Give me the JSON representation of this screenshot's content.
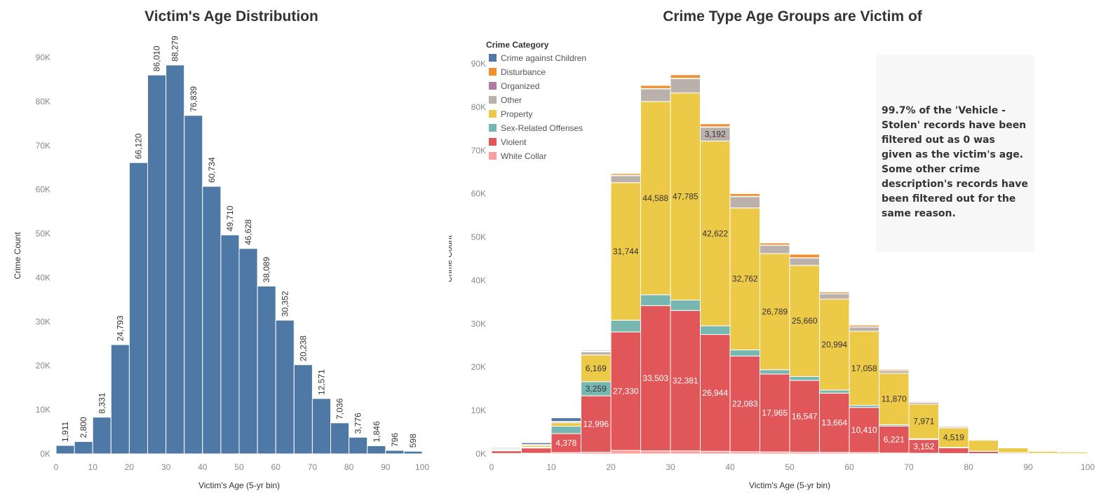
{
  "chart_data": [
    {
      "type": "bar",
      "title": "Victim's Age Distribution",
      "xlabel": "Victim's Age (5-yr bin)",
      "ylabel": "Crime Count",
      "ylim": [
        0,
        90000
      ],
      "y_ticks": [
        "0K",
        "10K",
        "20K",
        "30K",
        "40K",
        "50K",
        "60K",
        "70K",
        "80K",
        "90K"
      ],
      "x_ticks": [
        "0",
        "10",
        "20",
        "30",
        "40",
        "50",
        "60",
        "70",
        "80",
        "90",
        "100"
      ],
      "bin_starts": [
        0,
        5,
        10,
        15,
        20,
        25,
        30,
        35,
        40,
        45,
        50,
        55,
        60,
        65,
        70,
        75,
        80,
        85,
        90,
        95
      ],
      "values": [
        1911,
        2800,
        8331,
        24793,
        66120,
        86010,
        88279,
        76839,
        60734,
        49710,
        46628,
        38089,
        30352,
        20238,
        12571,
        7036,
        3776,
        1846,
        796,
        598
      ],
      "labels": [
        "1,911",
        "2,800",
        "8,331",
        "24,793",
        "66,120",
        "86,010",
        "88,279",
        "76,839",
        "60,734",
        "49,710",
        "46,628",
        "38,089",
        "30,352",
        "20,238",
        "12,571",
        "7,036",
        "3,776",
        "1,846",
        "796",
        "598"
      ],
      "color": "#4e79a7",
      "grid": false
    },
    {
      "type": "bar",
      "stacked": true,
      "title": "Crime Type Age Groups are Victim of",
      "xlabel": "Victim's Age (5-yr bin)",
      "ylabel": "Crime Count",
      "ylim": [
        0,
        90000
      ],
      "y_ticks": [
        "0K",
        "10K",
        "20K",
        "30K",
        "40K",
        "50K",
        "60K",
        "70K",
        "80K",
        "90K"
      ],
      "x_ticks": [
        "0",
        "10",
        "20",
        "30",
        "40",
        "50",
        "60",
        "70",
        "80",
        "90",
        "100"
      ],
      "legend_title": "Crime Category",
      "legend_position": "top-left",
      "bin_starts": [
        0,
        5,
        10,
        15,
        20,
        25,
        30,
        35,
        40,
        45,
        50,
        55,
        60,
        65,
        70,
        75,
        80,
        85,
        90,
        95
      ],
      "series": [
        {
          "name": "White Collar",
          "color": "#ff9d9a",
          "values": [
            100,
            150,
            300,
            400,
            800,
            700,
            700,
            600,
            500,
            450,
            400,
            350,
            300,
            200,
            150,
            100,
            80,
            50,
            30,
            20
          ]
        },
        {
          "name": "Violent",
          "color": "#e15759",
          "values": [
            600,
            1200,
            4378,
            12996,
            27330,
            33503,
            32381,
            26944,
            22083,
            17965,
            16547,
            13664,
            10410,
            6221,
            3152,
            1300,
            500,
            200,
            80,
            50
          ]
        },
        {
          "name": "Sex-Related Offenses",
          "color": "#76b7b2",
          "values": [
            100,
            200,
            1700,
            3259,
            2700,
            2500,
            2400,
            2000,
            1400,
            1000,
            900,
            700,
            500,
            300,
            200,
            100,
            50,
            30,
            20,
            10
          ]
        },
        {
          "name": "Property",
          "color": "#edc948",
          "values": [
            200,
            400,
            800,
            6169,
            31744,
            44588,
            47785,
            42622,
            32762,
            26789,
            25660,
            20994,
            17058,
            11870,
            7971,
            4519,
            2500,
            1100,
            450,
            350
          ]
        },
        {
          "name": "Other",
          "color": "#bab0ac",
          "values": [
            200,
            200,
            300,
            700,
            1600,
            2900,
            3300,
            3192,
            2600,
            1900,
            1700,
            1200,
            1000,
            600,
            400,
            300,
            200,
            100,
            50,
            40
          ]
        },
        {
          "name": "Organized",
          "color": "#b07aa1",
          "values": [
            0,
            0,
            10,
            50,
            100,
            100,
            100,
            100,
            80,
            60,
            50,
            40,
            30,
            20,
            15,
            10,
            5,
            5,
            0,
            0
          ]
        },
        {
          "name": "Disturbance",
          "color": "#f28e2b",
          "values": [
            0,
            10,
            20,
            100,
            400,
            700,
            800,
            700,
            600,
            500,
            800,
            400,
            400,
            300,
            200,
            100,
            50,
            20,
            10,
            5
          ]
        },
        {
          "name": "Crime against Children",
          "color": "#4e79a7",
          "values": [
            200,
            400,
            800,
            200,
            100,
            100,
            100,
            100,
            80,
            60,
            50,
            40,
            30,
            20,
            15,
            10,
            5,
            5,
            5,
            5
          ]
        }
      ],
      "data_labels": [
        {
          "series": "Violent",
          "bin": 10,
          "text": "4,378",
          "color": "#ffffff"
        },
        {
          "series": "Violent",
          "bin": 15,
          "text": "12,996",
          "color": "#ffffff"
        },
        {
          "series": "Violent",
          "bin": 20,
          "text": "27,330",
          "color": "#ffffff"
        },
        {
          "series": "Violent",
          "bin": 25,
          "text": "33,503",
          "color": "#ffffff"
        },
        {
          "series": "Violent",
          "bin": 30,
          "text": "32,381",
          "color": "#ffffff"
        },
        {
          "series": "Violent",
          "bin": 35,
          "text": "26,944",
          "color": "#ffffff"
        },
        {
          "series": "Violent",
          "bin": 40,
          "text": "22,083",
          "color": "#ffffff"
        },
        {
          "series": "Violent",
          "bin": 45,
          "text": "17,965",
          "color": "#ffffff"
        },
        {
          "series": "Violent",
          "bin": 50,
          "text": "16,547",
          "color": "#ffffff"
        },
        {
          "series": "Violent",
          "bin": 55,
          "text": "13,664",
          "color": "#ffffff"
        },
        {
          "series": "Violent",
          "bin": 60,
          "text": "10,410",
          "color": "#ffffff"
        },
        {
          "series": "Violent",
          "bin": 65,
          "text": "6,221",
          "color": "#ffffff"
        },
        {
          "series": "Violent",
          "bin": 70,
          "text": "3,152",
          "color": "#ffffff"
        },
        {
          "series": "Sex-Related Offenses",
          "bin": 15,
          "text": "3,259",
          "color": "#333333"
        },
        {
          "series": "Property",
          "bin": 15,
          "text": "6,169",
          "color": "#333333"
        },
        {
          "series": "Property",
          "bin": 20,
          "text": "31,744",
          "color": "#333333"
        },
        {
          "series": "Property",
          "bin": 25,
          "text": "44,588",
          "color": "#333333"
        },
        {
          "series": "Property",
          "bin": 30,
          "text": "47,785",
          "color": "#333333"
        },
        {
          "series": "Property",
          "bin": 35,
          "text": "42,622",
          "color": "#333333"
        },
        {
          "series": "Property",
          "bin": 40,
          "text": "32,762",
          "color": "#333333"
        },
        {
          "series": "Property",
          "bin": 45,
          "text": "26,789",
          "color": "#333333"
        },
        {
          "series": "Property",
          "bin": 50,
          "text": "25,660",
          "color": "#333333"
        },
        {
          "series": "Property",
          "bin": 55,
          "text": "20,994",
          "color": "#333333"
        },
        {
          "series": "Property",
          "bin": 60,
          "text": "17,058",
          "color": "#333333"
        },
        {
          "series": "Property",
          "bin": 65,
          "text": "11,870",
          "color": "#333333"
        },
        {
          "series": "Property",
          "bin": 70,
          "text": "7,971",
          "color": "#333333"
        },
        {
          "series": "Property",
          "bin": 75,
          "text": "4,519",
          "color": "#333333"
        },
        {
          "series": "Other",
          "bin": 35,
          "text": "3,192",
          "color": "#333333"
        }
      ],
      "annotation": "99.7% of the 'Vehicle - Stolen' records have been filtered out as 0 was given as the victim's age. Some other crime description's records have been filtered out for the same reason.",
      "grid": false
    }
  ]
}
